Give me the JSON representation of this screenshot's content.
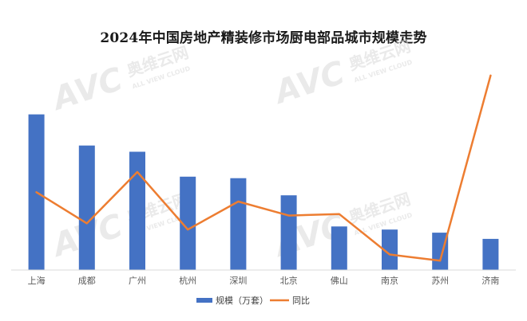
{
  "chart_data": {
    "type": "bar",
    "title": "2024年中国房地产精装修市场厨电部品城市规模走势",
    "categories": [
      "上海",
      "成都",
      "广州",
      "杭州",
      "深圳",
      "北京",
      "佛山",
      "南京",
      "苏州",
      "济南"
    ],
    "series": [
      {
        "name": "规模（万套）",
        "type": "bar",
        "color": "#4472C4",
        "values": [
          100,
          80,
          76,
          60,
          59,
          48,
          28,
          26,
          24,
          20
        ]
      },
      {
        "name": "同比",
        "type": "line",
        "color": "#ED7D31",
        "values": [
          50,
          30,
          63,
          26,
          44,
          35,
          36,
          10,
          6,
          125
        ]
      }
    ],
    "ylim": [
      0,
      130
    ],
    "legend": "bottom",
    "grid": false
  },
  "watermark": {
    "logo_text": "AVC",
    "cn_text": "奥维云网",
    "en_text": "ALL VIEW CLOUD"
  }
}
